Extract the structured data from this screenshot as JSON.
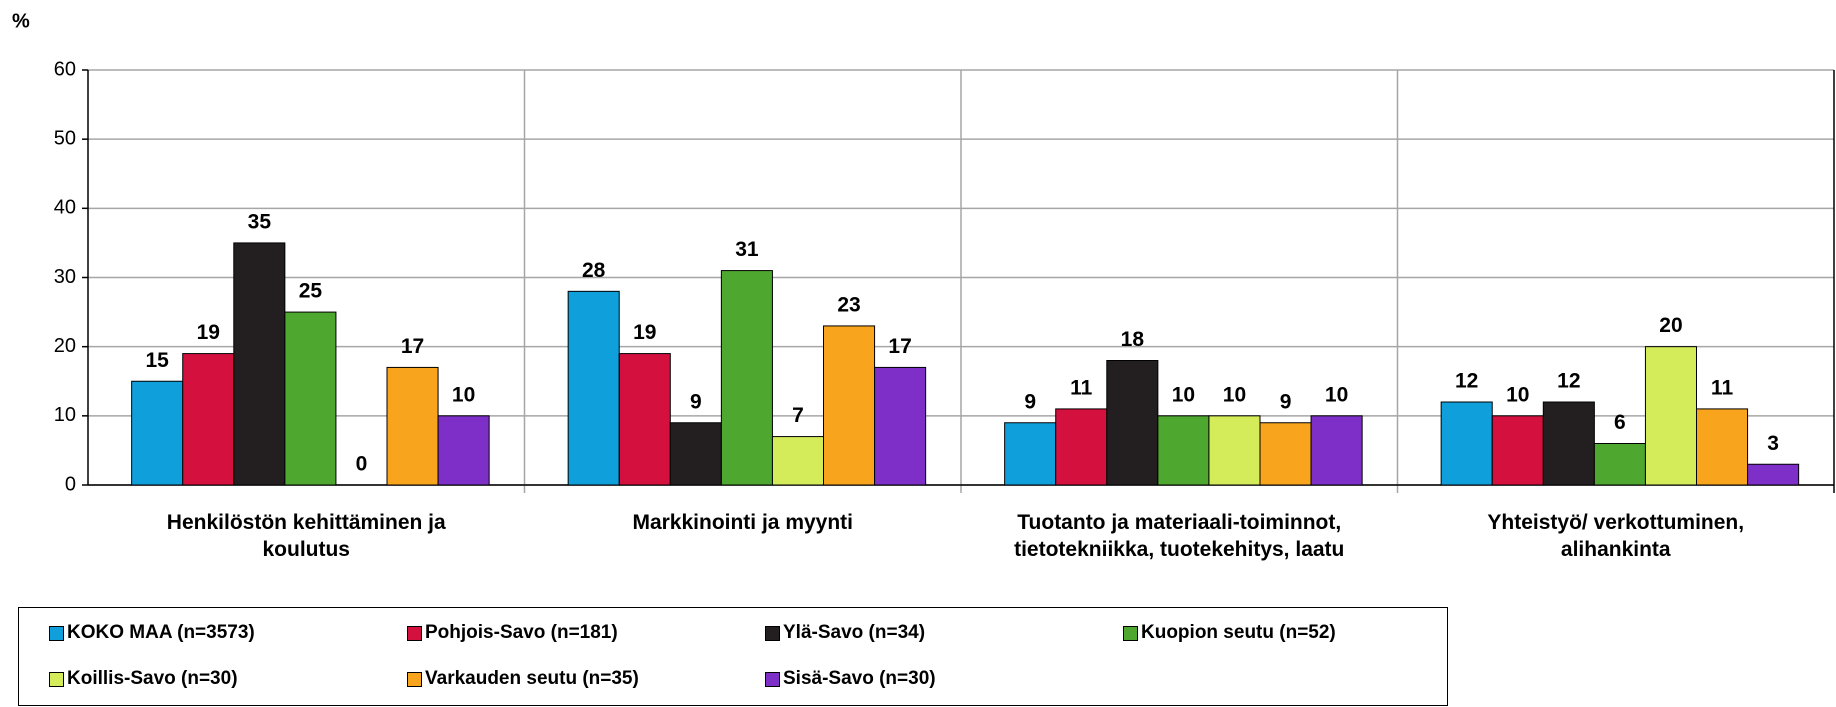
{
  "chart_data": {
    "type": "bar",
    "y_label": "%",
    "categories": [
      "Henkilöstön kehittäminen ja koulutus",
      "Markkinointi ja myynti",
      "Tuotanto ja materiaali-toiminnot, tietotekniikka, tuotekehitys, laatu",
      "Yhteistyö/ verkottuminen, alihankinta"
    ],
    "series": [
      {
        "name": "KOKO MAA (n=3573)",
        "color": "#0fa0dc",
        "values": [
          15,
          28,
          9,
          12
        ]
      },
      {
        "name": "Pohjois-Savo (n=181)",
        "color": "#d4103f",
        "values": [
          19,
          19,
          11,
          10
        ]
      },
      {
        "name": "Ylä-Savo (n=34)",
        "color": "#231f20",
        "values": [
          35,
          9,
          18,
          12
        ]
      },
      {
        "name": "Kuopion seutu (n=52)",
        "color": "#4ea72e",
        "values": [
          25,
          31,
          10,
          6
        ]
      },
      {
        "name": "Koillis-Savo (n=30)",
        "color": "#d4eb5a",
        "values": [
          0,
          7,
          10,
          20
        ]
      },
      {
        "name": "Varkauden seutu (n=35)",
        "color": "#f8a41c",
        "values": [
          17,
          23,
          9,
          11
        ]
      },
      {
        "name": "Sisä-Savo (n=30)",
        "color": "#7e2fc8",
        "values": [
          10,
          17,
          10,
          3
        ]
      }
    ],
    "ylim": [
      0,
      60
    ],
    "yticks": [
      0,
      10,
      20,
      30,
      40,
      50,
      60
    ],
    "grid": true
  }
}
